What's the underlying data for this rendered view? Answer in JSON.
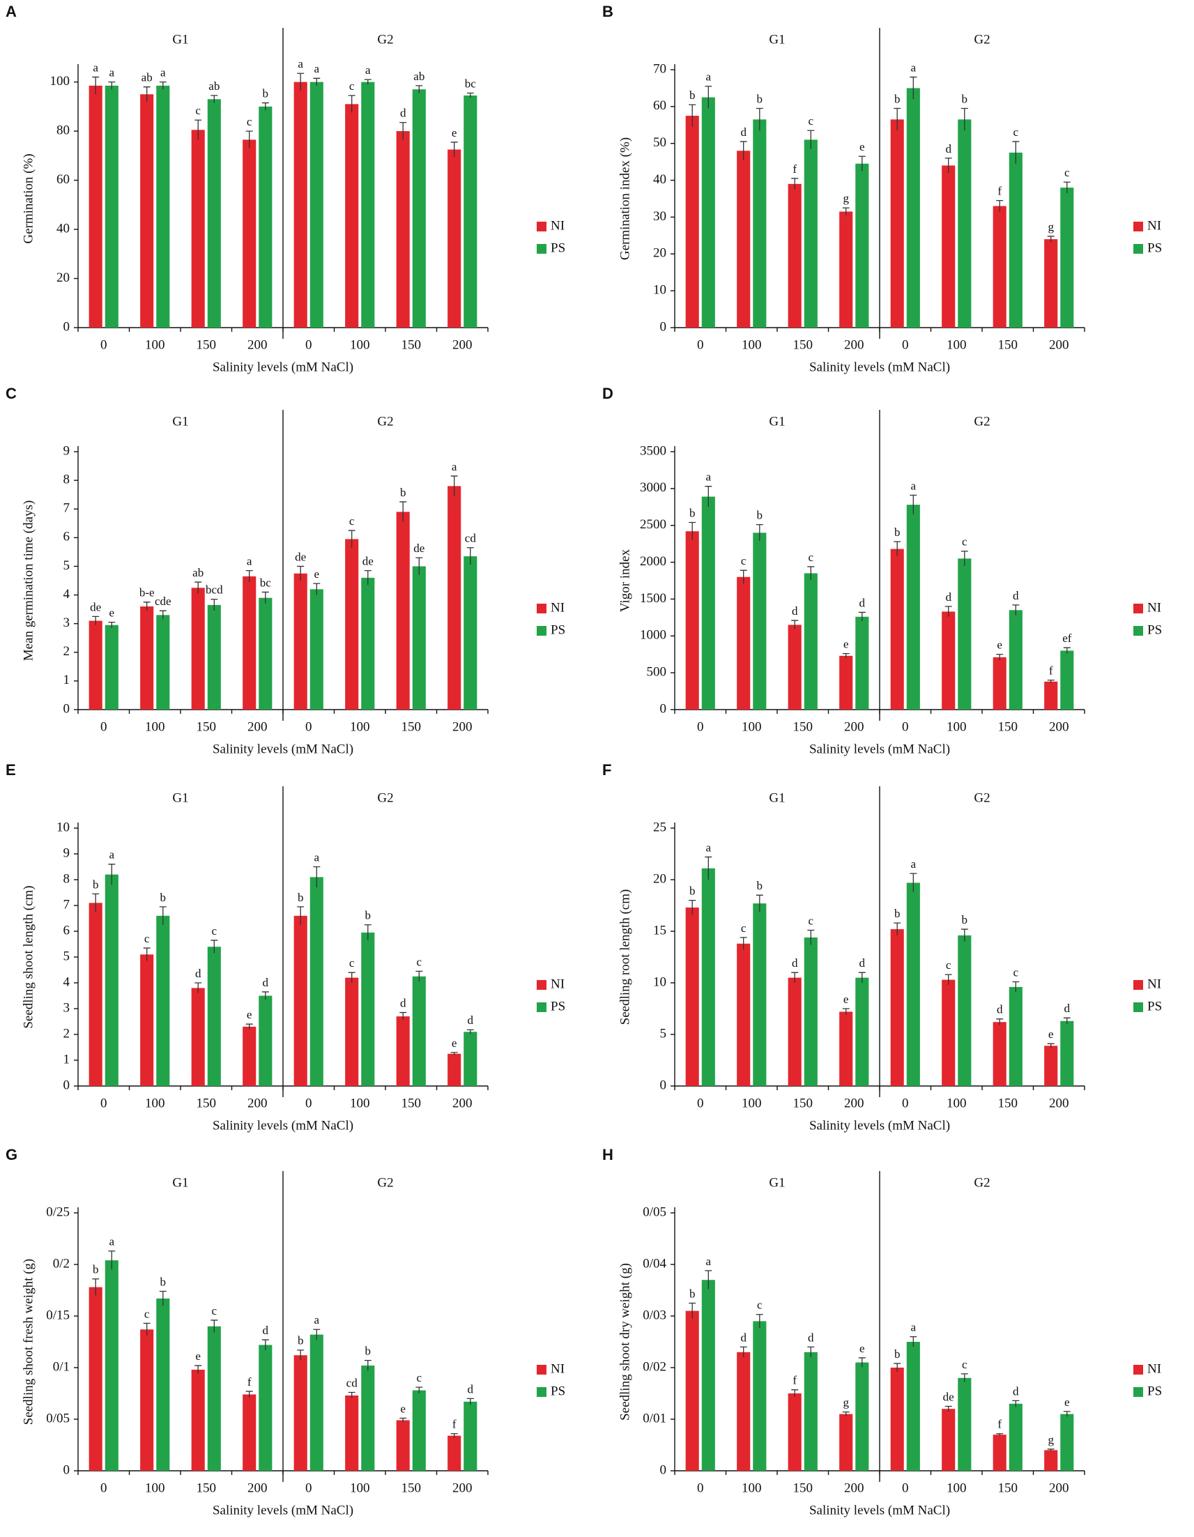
{
  "chart_data": [
    {
      "type": "bar",
      "panel": "A",
      "ylabel": "Germination (%)",
      "xlabel": "Salinity levels (mM NaCl)",
      "groups": [
        "G1",
        "G2"
      ],
      "categories": [
        "0",
        "100",
        "150",
        "200",
        "0",
        "100",
        "150",
        "200"
      ],
      "ylim": [
        0,
        105
      ],
      "yticks": [
        0,
        20,
        40,
        60,
        80,
        100
      ],
      "series": [
        {
          "name": "NI",
          "color": "#e3262d",
          "values": [
            98.5,
            95,
            80.5,
            76.5,
            100,
            91,
            80,
            72.5
          ],
          "errors": [
            3.5,
            3,
            4,
            3.5,
            3.5,
            3.5,
            3.5,
            3
          ],
          "letters": [
            "a",
            "ab",
            "c",
            "c",
            "a",
            "c",
            "d",
            "e"
          ]
        },
        {
          "name": "PS",
          "color": "#22a34a",
          "values": [
            98.5,
            98.5,
            93,
            90,
            100,
            100,
            97,
            94.5
          ],
          "errors": [
            1.5,
            1.5,
            1.5,
            1.5,
            1.5,
            1,
            1.5,
            1
          ],
          "letters": [
            "a",
            "a",
            "ab",
            "b",
            "a",
            "a",
            "ab",
            "bc"
          ]
        }
      ]
    },
    {
      "type": "bar",
      "panel": "B",
      "ylabel": "Germination index (%)",
      "xlabel": "Salinity levels (mM NaCl)",
      "groups": [
        "G1",
        "G2"
      ],
      "categories": [
        "0",
        "100",
        "150",
        "200",
        "0",
        "100",
        "150",
        "200"
      ],
      "ylim": [
        0,
        70
      ],
      "yticks": [
        0,
        10,
        20,
        30,
        40,
        50,
        60,
        70
      ],
      "series": [
        {
          "name": "NI",
          "color": "#e3262d",
          "values": [
            57.5,
            48,
            39,
            31.5,
            56.5,
            44,
            33,
            24
          ],
          "errors": [
            3,
            2.5,
            1.5,
            1,
            3,
            2,
            1.5,
            0.8
          ],
          "letters": [
            "b",
            "d",
            "f",
            "g",
            "b",
            "d",
            "f",
            "g"
          ]
        },
        {
          "name": "PS",
          "color": "#22a34a",
          "values": [
            62.5,
            56.5,
            51,
            44.5,
            65,
            56.5,
            47.5,
            38
          ],
          "errors": [
            3,
            3,
            2.5,
            2,
            3,
            3,
            3,
            1.5
          ],
          "letters": [
            "a",
            "b",
            "c",
            "e",
            "a",
            "b",
            "c",
            "c"
          ]
        }
      ]
    },
    {
      "type": "bar",
      "panel": "C",
      "ylabel": "Mean germination time (days)",
      "xlabel": "Salinity levels (mM NaCl)",
      "groups": [
        "G1",
        "G2"
      ],
      "categories": [
        "0",
        "100",
        "150",
        "200",
        "0",
        "100",
        "150",
        "200"
      ],
      "ylim": [
        0,
        9
      ],
      "yticks": [
        0,
        1,
        2,
        3,
        4,
        5,
        6,
        7,
        8,
        9
      ],
      "series": [
        {
          "name": "NI",
          "color": "#e3262d",
          "values": [
            3.1,
            3.6,
            4.25,
            4.65,
            4.75,
            5.95,
            6.9,
            7.8
          ],
          "errors": [
            0.15,
            0.15,
            0.2,
            0.2,
            0.25,
            0.3,
            0.35,
            0.35
          ],
          "letters": [
            "de",
            "b-e",
            "ab",
            "a",
            "de",
            "c",
            "b",
            "a"
          ]
        },
        {
          "name": "PS",
          "color": "#22a34a",
          "values": [
            2.95,
            3.3,
            3.65,
            3.9,
            4.2,
            4.6,
            5.0,
            5.35
          ],
          "errors": [
            0.1,
            0.15,
            0.2,
            0.2,
            0.2,
            0.25,
            0.3,
            0.3
          ],
          "letters": [
            "e",
            "cde",
            "bcd",
            "bc",
            "e",
            "de",
            "de",
            "cd"
          ]
        }
      ]
    },
    {
      "type": "bar",
      "panel": "D",
      "ylabel": "Vigor index",
      "xlabel": "Salinity levels (mM NaCl)",
      "groups": [
        "G1",
        "G2"
      ],
      "categories": [
        "0",
        "100",
        "150",
        "200",
        "0",
        "100",
        "150",
        "200"
      ],
      "ylim": [
        0,
        3500
      ],
      "yticks": [
        0,
        500,
        1000,
        1500,
        2000,
        2500,
        3000,
        3500
      ],
      "series": [
        {
          "name": "NI",
          "color": "#e3262d",
          "values": [
            2420,
            1800,
            1150,
            730,
            2180,
            1330,
            710,
            380
          ],
          "errors": [
            120,
            90,
            60,
            30,
            100,
            70,
            40,
            20
          ],
          "letters": [
            "b",
            "c",
            "d",
            "e",
            "b",
            "d",
            "e",
            "f"
          ]
        },
        {
          "name": "PS",
          "color": "#22a34a",
          "values": [
            2890,
            2400,
            1850,
            1260,
            2780,
            2050,
            1350,
            800
          ],
          "errors": [
            140,
            110,
            90,
            60,
            130,
            100,
            70,
            40
          ],
          "letters": [
            "a",
            "b",
            "c",
            "d",
            "a",
            "c",
            "d",
            "ef"
          ]
        }
      ]
    },
    {
      "type": "bar",
      "panel": "E",
      "ylabel": "Seedling shoot length (cm)",
      "xlabel": "Salinity levels (mM NaCl)",
      "groups": [
        "G1",
        "G2"
      ],
      "categories": [
        "0",
        "100",
        "150",
        "200",
        "0",
        "100",
        "150",
        "200"
      ],
      "ylim": [
        0,
        10
      ],
      "yticks": [
        0,
        1,
        2,
        3,
        4,
        5,
        6,
        7,
        8,
        9,
        10
      ],
      "series": [
        {
          "name": "NI",
          "color": "#e3262d",
          "values": [
            7.1,
            5.1,
            3.8,
            2.3,
            6.6,
            4.2,
            2.7,
            1.25
          ],
          "errors": [
            0.35,
            0.25,
            0.2,
            0.1,
            0.35,
            0.2,
            0.15,
            0.05
          ],
          "letters": [
            "b",
            "c",
            "d",
            "e",
            "b",
            "c",
            "d",
            "e"
          ]
        },
        {
          "name": "PS",
          "color": "#22a34a",
          "values": [
            8.2,
            6.6,
            5.4,
            3.5,
            8.1,
            5.95,
            4.25,
            2.1
          ],
          "errors": [
            0.4,
            0.35,
            0.25,
            0.15,
            0.4,
            0.3,
            0.2,
            0.08
          ],
          "letters": [
            "a",
            "b",
            "c",
            "d",
            "a",
            "b",
            "c",
            "d"
          ]
        }
      ]
    },
    {
      "type": "bar",
      "panel": "F",
      "ylabel": "Seedling root length (cm)",
      "xlabel": "Salinity levels (mM NaCl)",
      "groups": [
        "G1",
        "G2"
      ],
      "categories": [
        "0",
        "100",
        "150",
        "200",
        "0",
        "100",
        "150",
        "200"
      ],
      "ylim": [
        0,
        25
      ],
      "yticks": [
        0,
        5,
        10,
        15,
        20,
        25
      ],
      "series": [
        {
          "name": "NI",
          "color": "#e3262d",
          "values": [
            17.3,
            13.8,
            10.5,
            7.2,
            15.2,
            10.3,
            6.2,
            3.9
          ],
          "errors": [
            0.7,
            0.6,
            0.5,
            0.3,
            0.6,
            0.5,
            0.3,
            0.2
          ],
          "letters": [
            "b",
            "c",
            "d",
            "e",
            "b",
            "c",
            "d",
            "e"
          ]
        },
        {
          "name": "PS",
          "color": "#22a34a",
          "values": [
            21.1,
            17.7,
            14.4,
            10.5,
            19.7,
            14.6,
            9.6,
            6.3
          ],
          "errors": [
            1.1,
            0.8,
            0.7,
            0.5,
            0.9,
            0.6,
            0.5,
            0.3
          ],
          "letters": [
            "a",
            "b",
            "c",
            "d",
            "a",
            "b",
            "c",
            "d"
          ]
        }
      ]
    },
    {
      "type": "bar",
      "panel": "G",
      "ylabel": "Seedling shoot fresh weight (g)",
      "xlabel": "Salinity levels (mM NaCl)",
      "groups": [
        "G1",
        "G2"
      ],
      "categories": [
        "0",
        "100",
        "150",
        "200",
        "0",
        "100",
        "150",
        "200"
      ],
      "ylim": [
        0,
        0.25
      ],
      "yticks": [
        0,
        {
          "value": 0.05,
          "label": "0/05"
        },
        {
          "value": 0.1,
          "label": "0/1"
        },
        {
          "value": 0.15,
          "label": "0/15"
        },
        {
          "value": 0.2,
          "label": "0/2"
        },
        {
          "value": 0.25,
          "label": "0/25"
        }
      ],
      "series": [
        {
          "name": "NI",
          "color": "#e3262d",
          "values": [
            0.178,
            0.137,
            0.098,
            0.074,
            0.112,
            0.073,
            0.049,
            0.034
          ],
          "errors": [
            0.008,
            0.006,
            0.004,
            0.003,
            0.005,
            0.003,
            0.002,
            0.002
          ],
          "letters": [
            "b",
            "c",
            "e",
            "f",
            "b",
            "cd",
            "e",
            "f"
          ]
        },
        {
          "name": "PS",
          "color": "#22a34a",
          "values": [
            0.204,
            0.167,
            0.14,
            0.122,
            0.132,
            0.102,
            0.078,
            0.067
          ],
          "errors": [
            0.009,
            0.007,
            0.006,
            0.005,
            0.005,
            0.005,
            0.003,
            0.003
          ],
          "letters": [
            "a",
            "b",
            "c",
            "d",
            "a",
            "b",
            "c",
            "d"
          ]
        }
      ]
    },
    {
      "type": "bar",
      "panel": "H",
      "ylabel": "Seedling shoot dry weight (g)",
      "xlabel": "Salinity levels (mM NaCl)",
      "groups": [
        "G1",
        "G2"
      ],
      "categories": [
        "0",
        "100",
        "150",
        "200",
        "0",
        "100",
        "150",
        "200"
      ],
      "ylim": [
        0,
        0.05
      ],
      "yticks": [
        0,
        {
          "value": 0.01,
          "label": "0/01"
        },
        {
          "value": 0.02,
          "label": "0/02"
        },
        {
          "value": 0.03,
          "label": "0/03"
        },
        {
          "value": 0.04,
          "label": "0/04"
        },
        {
          "value": 0.05,
          "label": "0/05"
        }
      ],
      "series": [
        {
          "name": "NI",
          "color": "#e3262d",
          "values": [
            0.031,
            0.023,
            0.015,
            0.011,
            0.02,
            0.012,
            0.007,
            0.004
          ],
          "errors": [
            0.0015,
            0.001,
            0.0007,
            0.0004,
            0.0008,
            0.0005,
            0.0002,
            0.0002
          ],
          "letters": [
            "b",
            "d",
            "f",
            "g",
            "b",
            "de",
            "f",
            "g"
          ]
        },
        {
          "name": "PS",
          "color": "#22a34a",
          "values": [
            0.037,
            0.029,
            0.023,
            0.021,
            0.025,
            0.018,
            0.013,
            0.011
          ],
          "errors": [
            0.0018,
            0.0013,
            0.001,
            0.0009,
            0.001,
            0.0008,
            0.0006,
            0.0005
          ],
          "letters": [
            "a",
            "c",
            "d",
            "e",
            "a",
            "c",
            "d",
            "e"
          ]
        }
      ]
    }
  ]
}
